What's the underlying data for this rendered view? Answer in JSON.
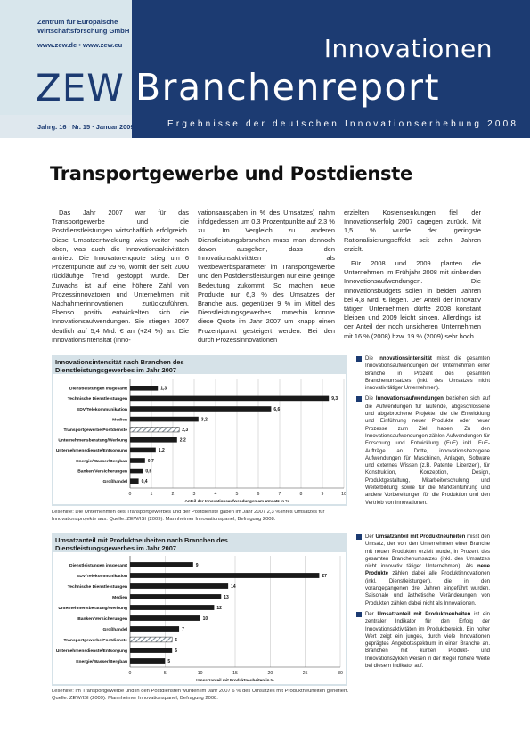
{
  "header": {
    "org_line1": "Zentrum für Europäische",
    "org_line2": "Wirtschaftsforschung GmbH",
    "org_url": "www.zew.de • www.zew.eu",
    "zew_logo": "ZEW",
    "series_title_top": "Innovationen",
    "series_title_main": "Branchenreport",
    "issue": "Jahrg. 16 · Nr. 15 · Januar 2009",
    "subtitle": "Ergebnisse der deutschen Innovationserhebung 2008"
  },
  "article": {
    "title": "Transportgewerbe und Postdienste",
    "col1_p1": "Das Jahr 2007 war für das Transportgewerbe und die Postdienstleistungen wirtschaftlich erfolgreich. Diese Umsatzentwicklung wies weiter nach oben, was auch die Innovationsaktivitäten antrieb. Die Innovatorenquote stieg um 6 Prozentpunkte auf 29 %, womit der seit 2000 rückläufige Trend gestoppt wurde. Der Zuwachs ist auf eine höhere Zahl von Prozessinnovatoren und Unternehmen mit Nachahmerinnovationen zurückzuführen. Ebenso positiv entwickelten sich die Innovationsaufwendungen. Sie stiegen 2007 deutlich auf 5,4 Mrd. € an (+24 %) an. Die Innovationsintensität (Inno-",
    "col2_p1": "vationsausgaben in % des Umsatzes) nahm infolgedessen um 0,3 Prozentpunkte auf 2,3 % zu. Im Vergleich zu anderen Dienstleistungsbranchen muss man dennoch davon ausgehen, dass den Innovationsaktivitäten als Wettbewerbsparameter im Transportgewerbe und den Postdienstleistungen nur eine geringe Bedeutung zukommt. So machen neue Produkte nur 6,3 % des Umsatzes der Branche aus, gegenüber 9 % im Mittel des Dienstleistungsgewerbes. Immerhin konnte diese Quote im Jahr 2007 um knapp einen Prozentpunkt gesteigert werden. Bei den durch Prozessinnovationen",
    "col3_p1": "erzielten Kostensenkungen fiel der Innovationserfolg 2007 dagegen zurück. Mit 1,5 % wurde der geringste Rationalisierungseffekt seit zehn Jahren erzielt.",
    "col3_p2": "Für 2008 und 2009 planten die Unternehmen im Frühjahr 2008 mit sinkenden Innovationsaufwendungen. Die Innovationsbudgets sollen in beiden Jahren bei 4,8 Mrd. € liegen. Der Anteil der innovativ tätigen Unternehmen dürfte 2008 konstant bleiben und 2009 leicht sinken. Allerdings ist der Anteil der noch unsicheren Unternehmen mit 16 % (2008) bzw. 19 % (2009) sehr hoch."
  },
  "charts": [
    {
      "panel_title": "Innovationsintensität nach Branchen des Dienstleistungsgewerbes im Jahr 2007",
      "source": "Lesehilfe: Die Unternehmen des Transportgewerbes und der Postdienste gaben im Jahr 2007 2,3 % ihres Umsatzes für Innovationsprojekte aus. Quelle: ZEW/ISI (2009): Mannheimer Innovationspanel, Befragung 2008."
    },
    {
      "panel_title": "Umsatzanteil mit Produktneuheiten nach Branchen des Dienstleistungsgewerbes im Jahr 2007",
      "source": "Lesehilfe: Im Transportgewerbe und in den Postdiensten wurden im Jahr 2007 6 % des Umsatzes mit Produktneuheiten generiert. Quelle: ZEW/ISI (2009): Mannheimer Innovationspanel, Befragung 2008."
    }
  ],
  "chart_data": [
    {
      "type": "bar",
      "orientation": "horizontal",
      "title": "Innovationsintensität nach Branchen des Dienstleistungsgewerbes im Jahr 2007",
      "xlabel": "Anteil der Innovationsaufwendungen am Umsatz in %",
      "xlim": [
        0,
        10
      ],
      "xticks": [
        "0",
        "1",
        "2",
        "3",
        "4",
        "5",
        "6",
        "7",
        "8",
        "9",
        "10"
      ],
      "categories": [
        "Dienstleistungen insgesamt",
        "Technische Dienstleistungen",
        "EDV/Telekommunikation",
        "Medien",
        "Transportgewerbe/Postdienste",
        "Unternehmensberatung/Werbung",
        "Unternehmensdienste/Entsorgung",
        "Energie/Wasser/Bergbau",
        "Banken/Versicherungen",
        "Großhandel"
      ],
      "values": [
        1.3,
        9.3,
        6.6,
        3.2,
        2.3,
        2.2,
        1.2,
        0.7,
        0.6,
        0.4
      ],
      "value_labels": [
        "1,3",
        "9,3",
        "6,6",
        "3,2",
        "2,3",
        "2,2",
        "1,2",
        "0,7",
        "0,6",
        "0,4"
      ],
      "highlight": "Transportgewerbe/Postdienste",
      "colors": {
        "bar": "#1a1a1a",
        "highlight": "#7f8f99",
        "grid": "#c8c8c8"
      },
      "grid": true
    },
    {
      "type": "bar",
      "orientation": "horizontal",
      "title": "Umsatzanteil mit Produktneuheiten nach Branchen des Dienstleistungsgewerbes im Jahr 2007",
      "xlabel": "Umsatzanteil mit Produktneuheiten in %",
      "xlim": [
        0,
        30
      ],
      "xticks": [
        "0",
        "5",
        "10",
        "15",
        "20",
        "25",
        "30"
      ],
      "categories": [
        "Dienstleistungen insgesamt",
        "EDV/Telekommunikation",
        "Technische Dienstleistungen",
        "Medien",
        "Unternehmensberatung/Werbung",
        "Banken/Versicherungen",
        "Großhandel",
        "Transportgewerbe/Postdienste",
        "Unternehmensdienste/Entsorgung",
        "Energie/Wasser/Bergbau"
      ],
      "values": [
        9,
        27,
        14,
        13,
        12,
        10,
        7,
        6,
        6,
        5
      ],
      "value_labels": [
        "9",
        "27",
        "14",
        "13",
        "12",
        "10",
        "7",
        "6",
        "6",
        "5"
      ],
      "highlight": "Transportgewerbe/Postdienste",
      "colors": {
        "bar": "#1a1a1a",
        "highlight": "#7f8f99",
        "grid": "#c8c8c8"
      },
      "grid": true
    }
  ],
  "notes": {
    "n1_term": "Innovationsintensität",
    "n1_text_pre": "Die",
    "n1_text": "misst die gesamten Innovationsaufwendungen der Unternehmen einer Branche in Prozent des gesamten Branchenumsatzes (inkl. des Umsatzes nicht innovativ tätiger Unternehmen).",
    "n2_pre": "Die",
    "n2_term": "Innovationsaufwendungen",
    "n2_text": "beziehen sich auf die Aufwendungen für laufende, abgeschlossene und abgebrochene Projekte, die die Entwicklung und Einführung neuer Produkte oder neuer Prozesse zum Ziel haben. Zu den Innovationsaufwendungen zählen Aufwendungen für Forschung und Entwicklung (FuE) inkl. FuE-Aufträge an Dritte, innovationsbezogene Aufwendungen für Maschinen, Anlagen, Software und externes Wissen (z.B. Patente, Lizenzen), für Konstruktion, Konzeption, Design, Produktgestaltung, Mitarbeiterschulung und Weiterbildung sowie für die Markteinführung und andere Vorbereitungen für die Produktion und den Vertrieb von Innovationen.",
    "n3_pre": "Der",
    "n3_term": "Umsatzanteil mit Produktneuheiten",
    "n3_text": "misst den Umsatz, der von den Unternehmen einer Branche mit neuen Produkten erzielt wurde, in Prozent des gesamten Branchenumsatzes (inkl. des Umsatzes nicht innovativ tätiger Unternehmen). Als",
    "n3_term2": "neue Produkte",
    "n3_text2": "zählen dabei alle Produktinnovationen (inkl. Dienstleistungen), die in den vorangegangenen drei Jahren eingeführt wurden. Saisonale und ästhetische Veränderungen von Produkten zählen dabei nicht als Innovationen.",
    "n4_pre": "Der",
    "n4_term": "Umsatzanteil mit Produktneuheiten",
    "n4_text": "ist ein zentraler Indikator für den Erfolg der Innovationsaktivitäten im Produktbereich. Ein hoher Wert zeigt ein junges, durch viele Innovationen geprägtes Angebotsspektrum in einer Branche an. Branchen mit kurzen Produkt- und Innovationszyklen weisen in der Regel höhere Werte bei diesem Indikator auf."
  }
}
